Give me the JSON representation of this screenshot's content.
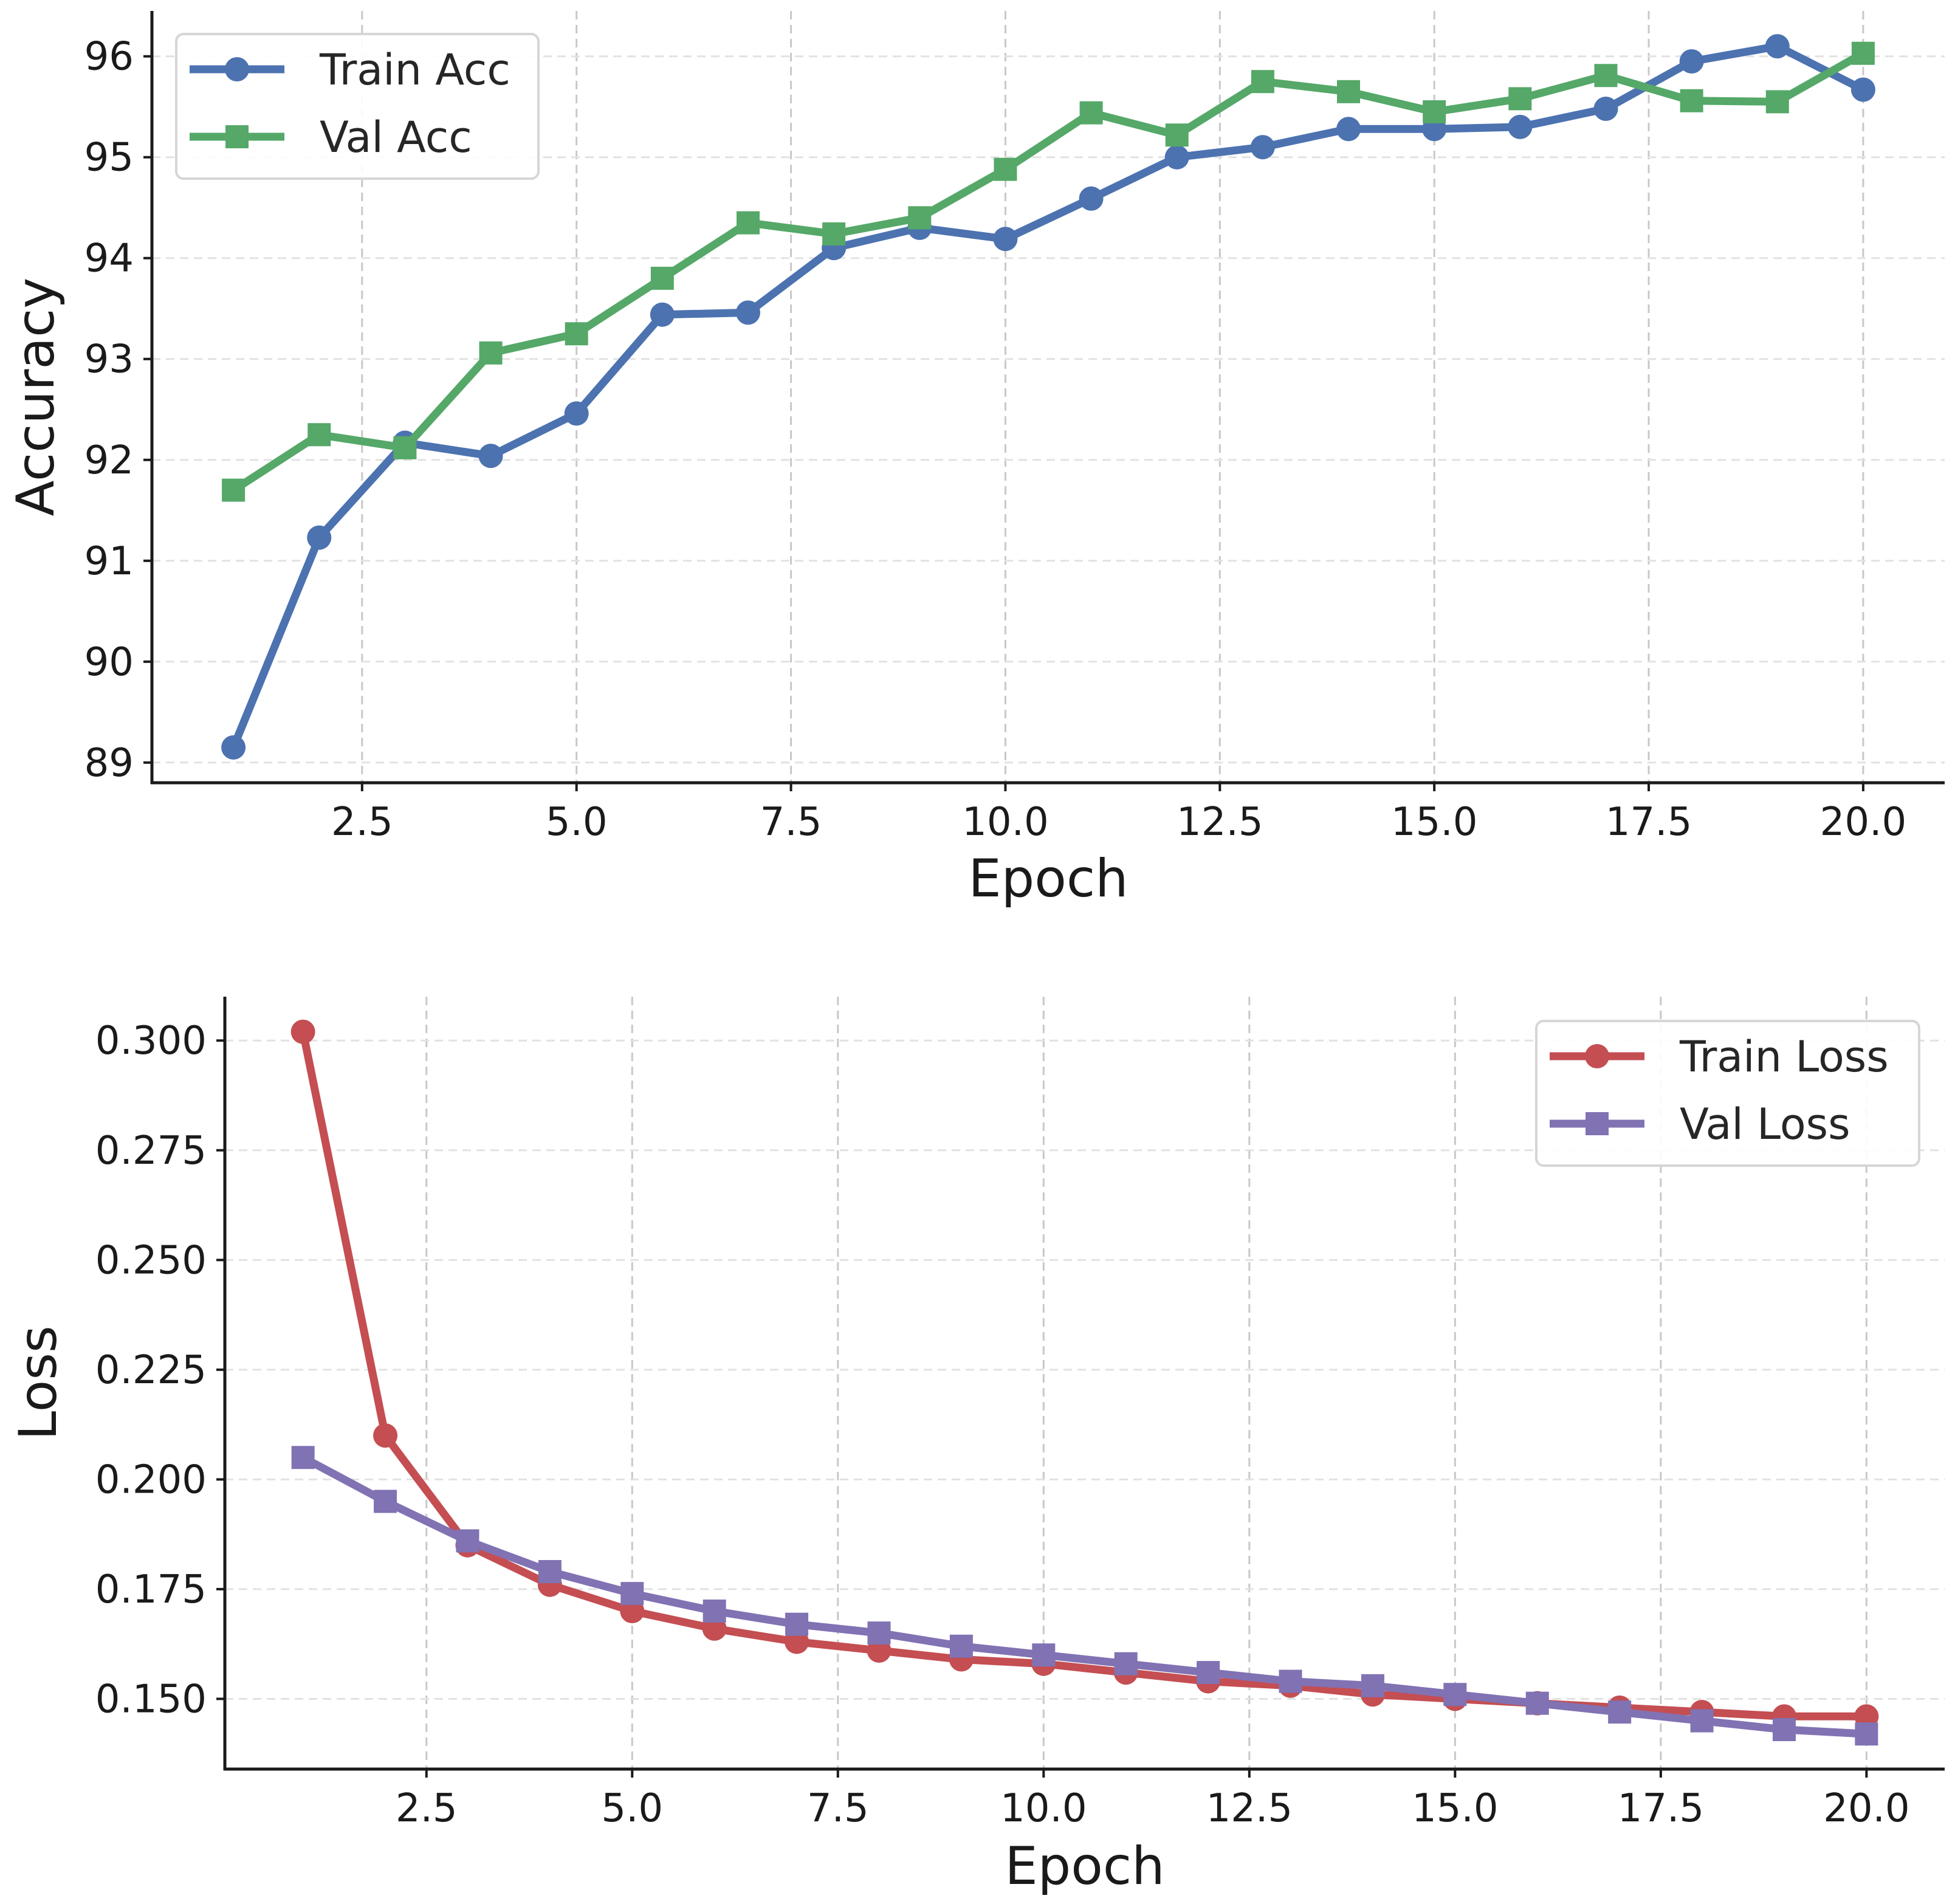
{
  "chart_data": [
    {
      "type": "line",
      "xlabel": "Epoch",
      "ylabel": "Accuracy",
      "xlim": [
        0.05,
        20.95
      ],
      "ylim": [
        88.8,
        96.45
      ],
      "xticks": [
        2.5,
        5.0,
        7.5,
        10.0,
        12.5,
        15.0,
        17.5,
        20.0
      ],
      "xtick_labels": [
        "2.5",
        "5.0",
        "7.5",
        "10.0",
        "12.5",
        "15.0",
        "17.5",
        "20.0"
      ],
      "yticks": [
        89,
        90,
        91,
        92,
        93,
        94,
        95,
        96
      ],
      "ytick_labels": [
        "89",
        "90",
        "91",
        "92",
        "93",
        "94",
        "95",
        "96"
      ],
      "grid": true,
      "legend_position": "top-left",
      "x": [
        1,
        2,
        3,
        4,
        5,
        6,
        7,
        8,
        9,
        10,
        11,
        12,
        13,
        14,
        15,
        16,
        17,
        18,
        19,
        20
      ],
      "series": [
        {
          "name": "Train Acc",
          "color": "#4c72b0",
          "marker": "circle",
          "values": [
            89.15,
            91.23,
            92.17,
            92.04,
            92.46,
            93.44,
            93.46,
            94.1,
            94.3,
            94.19,
            94.59,
            95.0,
            95.1,
            95.28,
            95.28,
            95.3,
            95.48,
            95.95,
            96.1,
            95.67
          ]
        },
        {
          "name": "Val Acc",
          "color": "#55a868",
          "marker": "square",
          "values": [
            91.7,
            92.25,
            92.12,
            93.06,
            93.25,
            93.8,
            94.35,
            94.24,
            94.4,
            94.88,
            95.44,
            95.22,
            95.75,
            95.65,
            95.45,
            95.58,
            95.81,
            95.56,
            95.55,
            96.03
          ]
        }
      ]
    },
    {
      "type": "line",
      "xlabel": "Epoch",
      "ylabel": "Loss",
      "xlim": [
        0.05,
        20.95
      ],
      "ylim": [
        0.134,
        0.31
      ],
      "xticks": [
        2.5,
        5.0,
        7.5,
        10.0,
        12.5,
        15.0,
        17.5,
        20.0
      ],
      "xtick_labels": [
        "2.5",
        "5.0",
        "7.5",
        "10.0",
        "12.5",
        "15.0",
        "17.5",
        "20.0"
      ],
      "yticks": [
        0.15,
        0.175,
        0.2,
        0.225,
        0.25,
        0.275,
        0.3
      ],
      "ytick_labels": [
        "0.150",
        "0.175",
        "0.200",
        "0.225",
        "0.250",
        "0.275",
        "0.300"
      ],
      "grid": true,
      "legend_position": "top-right",
      "x": [
        1,
        2,
        3,
        4,
        5,
        6,
        7,
        8,
        9,
        10,
        11,
        12,
        13,
        14,
        15,
        16,
        17,
        18,
        19,
        20
      ],
      "series": [
        {
          "name": "Train Loss",
          "color": "#c44e52",
          "marker": "circle",
          "values": [
            0.302,
            0.21,
            0.185,
            0.176,
            0.17,
            0.166,
            0.163,
            0.161,
            0.159,
            0.158,
            0.156,
            0.154,
            0.153,
            0.151,
            0.15,
            0.149,
            0.148,
            0.147,
            0.146,
            0.146
          ]
        },
        {
          "name": "Val Loss",
          "color": "#8172b3",
          "marker": "square",
          "values": [
            0.205,
            0.195,
            0.186,
            0.179,
            0.174,
            0.17,
            0.167,
            0.165,
            0.162,
            0.16,
            0.158,
            0.156,
            0.154,
            0.153,
            0.151,
            0.149,
            0.147,
            0.145,
            0.143,
            0.142
          ]
        }
      ]
    }
  ]
}
